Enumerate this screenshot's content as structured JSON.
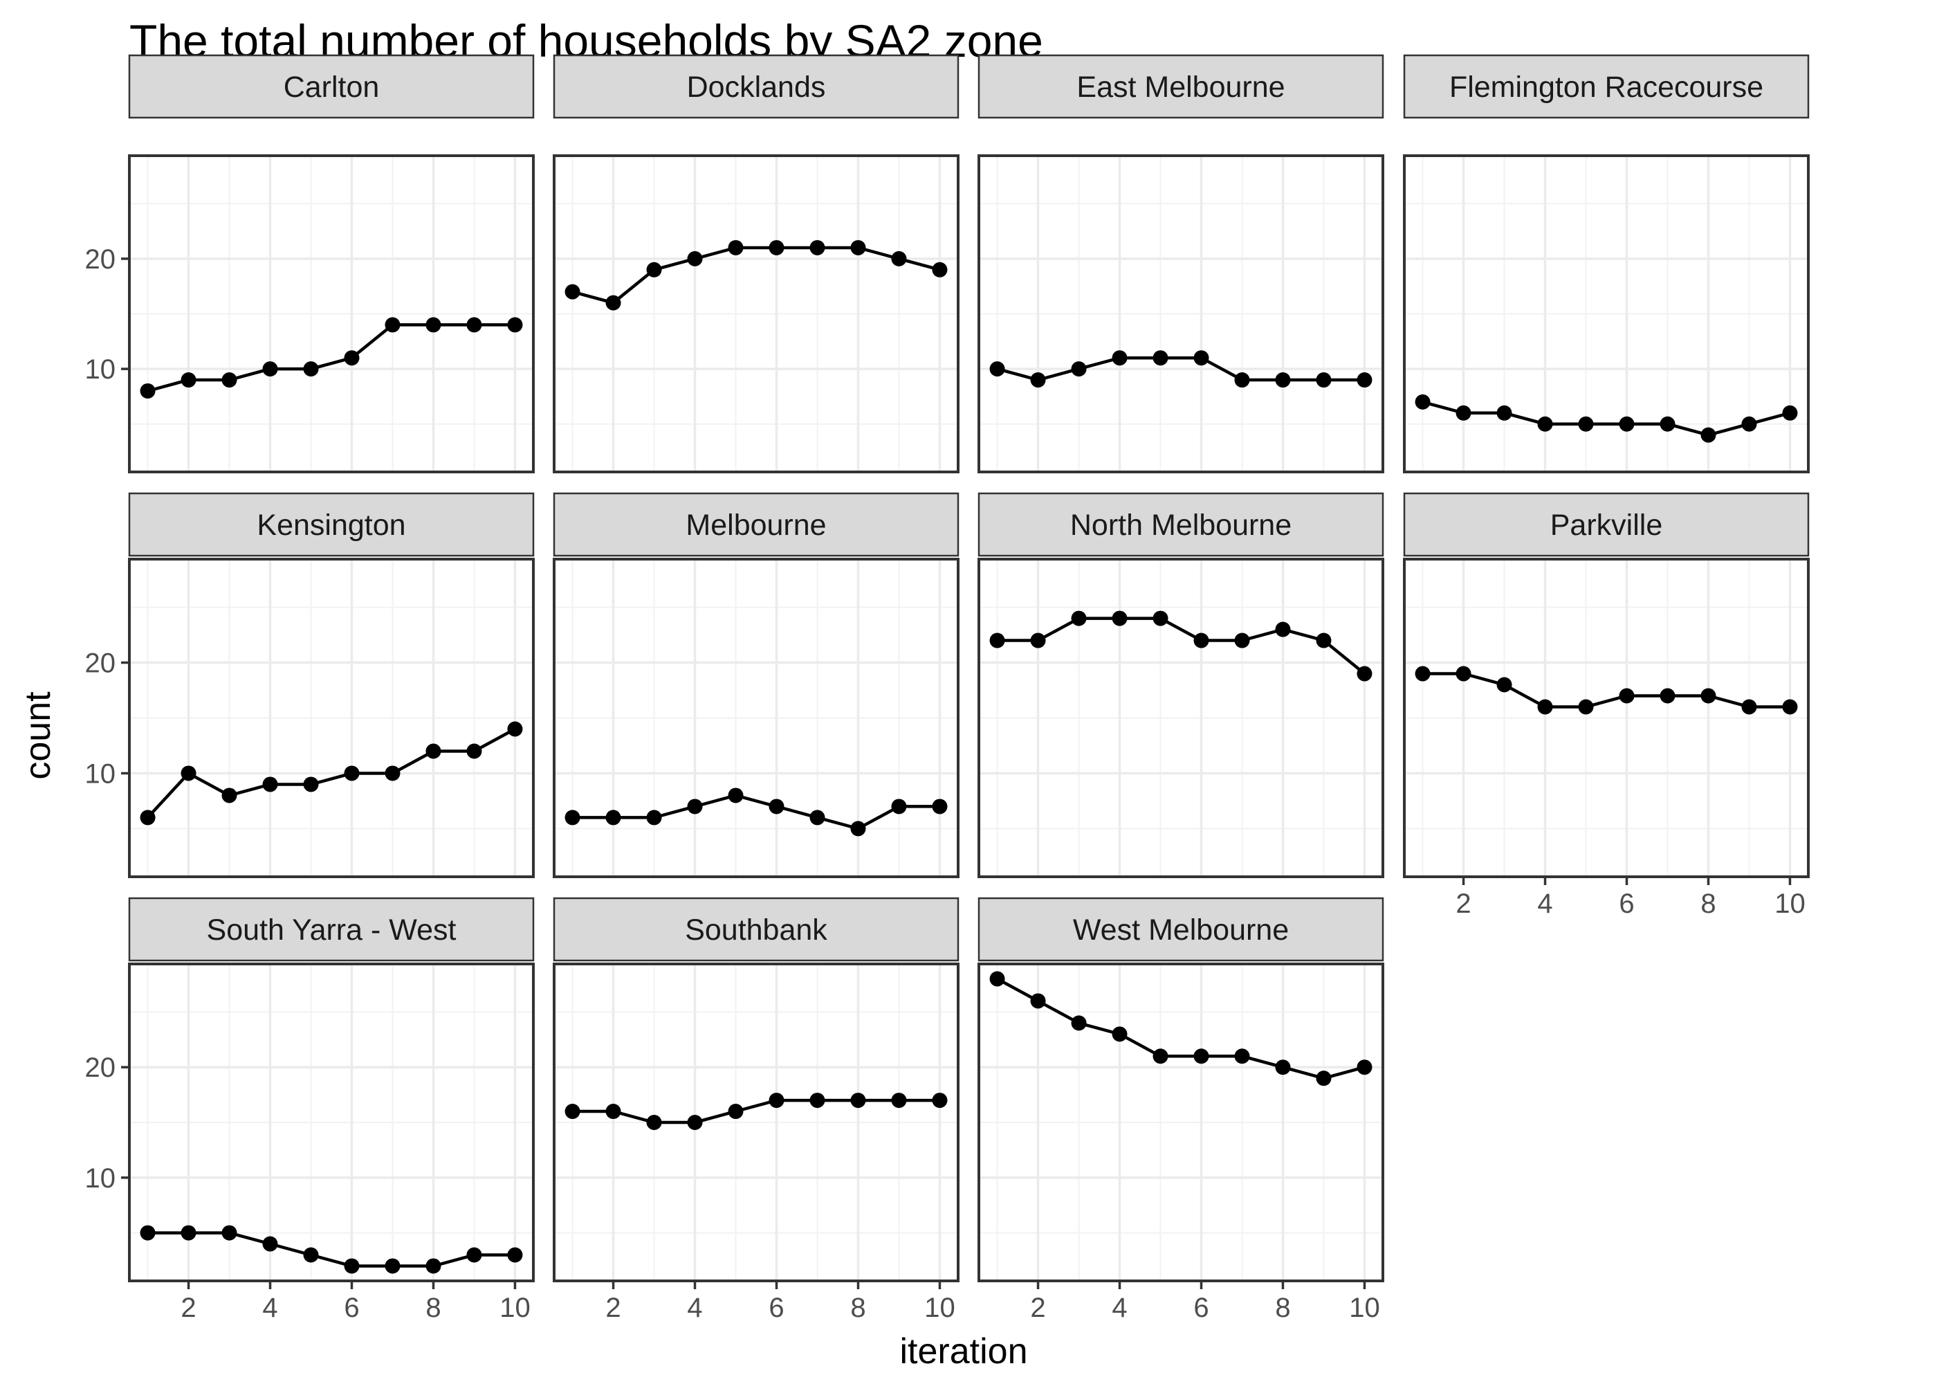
{
  "chart_data": {
    "type": "line",
    "title": "The total number of households by SA2 zone",
    "xlabel": "iteration",
    "ylabel": "count",
    "xlim": [
      0.55,
      10.45
    ],
    "ylim": [
      0.65,
      29.35
    ],
    "x_ticks": [
      2,
      4,
      6,
      8,
      10
    ],
    "x_tick_labels": [
      "2",
      "4",
      "6",
      "8",
      "10"
    ],
    "y_ticks": [
      10,
      20
    ],
    "y_tick_labels": [
      "10",
      "20"
    ],
    "grid": true,
    "facet_columns": 4,
    "x": [
      1,
      2,
      3,
      4,
      5,
      6,
      7,
      8,
      9,
      10
    ],
    "series": [
      {
        "name": "Carlton",
        "values": [
          8,
          9,
          9,
          10,
          10,
          11,
          14,
          14,
          14,
          14
        ]
      },
      {
        "name": "Docklands",
        "values": [
          17,
          16,
          19,
          20,
          21,
          21,
          21,
          21,
          20,
          19
        ]
      },
      {
        "name": "East Melbourne",
        "values": [
          10,
          9,
          10,
          11,
          11,
          11,
          9,
          9,
          9,
          9
        ]
      },
      {
        "name": "Flemington Racecourse",
        "values": [
          7,
          6,
          6,
          5,
          5,
          5,
          5,
          4,
          5,
          6
        ]
      },
      {
        "name": "Kensington",
        "values": [
          6,
          10,
          8,
          9,
          9,
          10,
          10,
          12,
          12,
          14
        ]
      },
      {
        "name": "Melbourne",
        "values": [
          6,
          6,
          6,
          7,
          8,
          7,
          6,
          5,
          7,
          7
        ]
      },
      {
        "name": "North Melbourne",
        "values": [
          22,
          22,
          24,
          24,
          24,
          22,
          22,
          23,
          22,
          19
        ]
      },
      {
        "name": "Parkville",
        "values": [
          19,
          19,
          18,
          16,
          16,
          17,
          17,
          17,
          16,
          16
        ]
      },
      {
        "name": "South Yarra - West",
        "values": [
          5,
          5,
          5,
          4,
          3,
          2,
          2,
          2,
          3,
          3
        ]
      },
      {
        "name": "Southbank",
        "values": [
          16,
          16,
          15,
          15,
          16,
          17,
          17,
          17,
          17,
          17
        ]
      },
      {
        "name": "West Melbourne",
        "values": [
          28,
          26,
          24,
          23,
          21,
          21,
          21,
          20,
          19,
          20
        ]
      }
    ]
  }
}
